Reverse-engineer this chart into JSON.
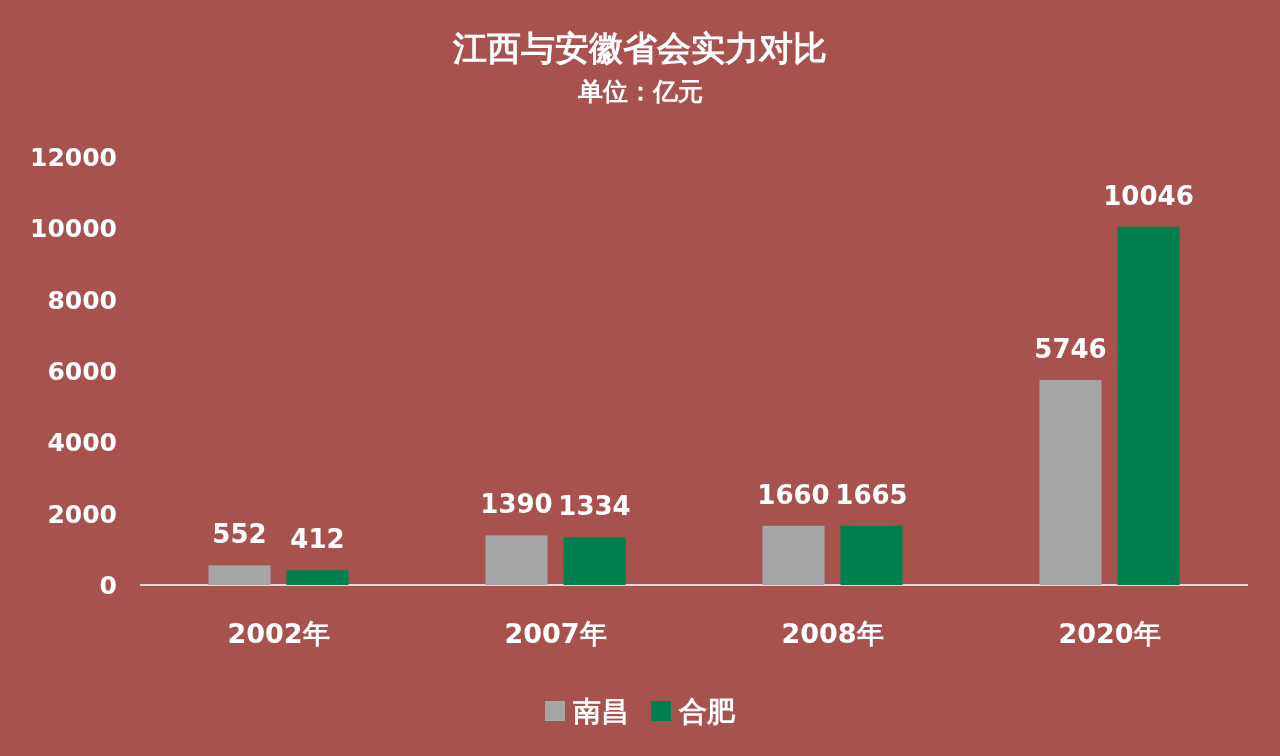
{
  "chart_data": {
    "type": "bar",
    "title": "江西与安徽省会实力对比",
    "subtitle": "单位：亿元",
    "categories": [
      "2002年",
      "2007年",
      "2008年",
      "2020年"
    ],
    "series": [
      {
        "name": "南昌",
        "color": "#a6a6a6",
        "values": [
          552,
          1390,
          1660,
          5746
        ]
      },
      {
        "name": "合肥",
        "color": "#00804f",
        "values": [
          412,
          1334,
          1665,
          10046
        ]
      }
    ],
    "ylim": [
      0,
      12000
    ],
    "yticks": [
      0,
      2000,
      4000,
      6000,
      8000,
      10000,
      12000
    ],
    "data_labels": true,
    "legend": "bottom",
    "grid": false
  }
}
